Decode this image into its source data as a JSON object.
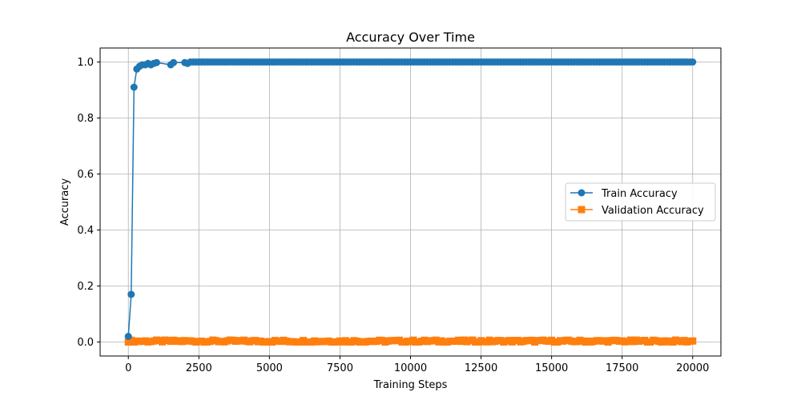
{
  "chart_data": {
    "type": "line",
    "title": "Accuracy Over Time",
    "xlabel": "Training Steps",
    "ylabel": "Accuracy",
    "xlim": [
      -1000,
      21000
    ],
    "ylim": [
      -0.05,
      1.05
    ],
    "xticks": [
      0,
      2500,
      5000,
      7500,
      10000,
      12500,
      15000,
      17500,
      20000
    ],
    "yticks": [
      0.0,
      0.2,
      0.4,
      0.6,
      0.8,
      1.0
    ],
    "xtick_labels": [
      "0",
      "2500",
      "5000",
      "7500",
      "10000",
      "12500",
      "15000",
      "17500",
      "20000"
    ],
    "ytick_labels": [
      "0.0",
      "0.2",
      "0.4",
      "0.6",
      "0.8",
      "1.0"
    ],
    "grid": true,
    "legend_position": "center-right",
    "legend": [
      "Train Accuracy",
      "Validation Accuracy"
    ],
    "series": [
      {
        "name": "Train Accuracy",
        "color": "#1f77b4",
        "marker": "circle",
        "description_points": [
          [
            0,
            0.02
          ],
          [
            100,
            0.17
          ],
          [
            200,
            0.91
          ],
          [
            300,
            0.975
          ],
          [
            400,
            0.985
          ],
          [
            500,
            0.99
          ],
          [
            600,
            0.99
          ],
          [
            700,
            0.995
          ],
          [
            800,
            0.99
          ],
          [
            900,
            0.995
          ],
          [
            1000,
            0.998
          ],
          [
            1500,
            0.99
          ],
          [
            1600,
            0.998
          ],
          [
            2000,
            0.998
          ],
          [
            2100,
            0.995
          ]
        ],
        "plateau": {
          "from": 2200,
          "to": 20000,
          "step": 100,
          "value": 1.0
        }
      },
      {
        "name": "Validation Accuracy",
        "color": "#ff7f0e",
        "marker": "square",
        "noise": {
          "from": 0,
          "to": 20000,
          "step": 100,
          "base": 0.003,
          "amplitude": 0.004
        }
      }
    ]
  }
}
